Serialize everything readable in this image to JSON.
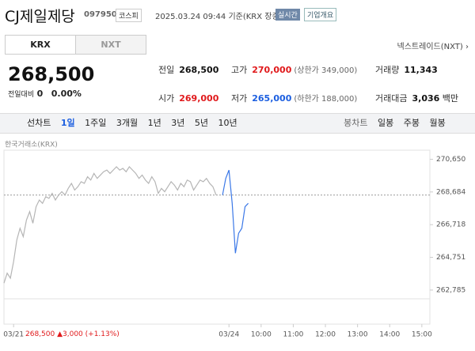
{
  "header": {
    "name": "CJ제일제당",
    "code": "097950",
    "market": "코스피",
    "datetime": "2025.03.24 09:44",
    "basis": "기준(KRX 장중)",
    "realtime": "실시간",
    "company_info": "기업개요"
  },
  "exchange_tabs": [
    "KRX",
    "NXT"
  ],
  "nxt_link": "넥스트레이드(NXT)",
  "quote": {
    "price": "268,500",
    "change_label": "전일대비",
    "change": "0",
    "change_rate": "0.00%"
  },
  "stats": [
    {
      "label": "전일",
      "value": "268,500"
    },
    {
      "label": "고가",
      "value": "270,000",
      "note": "(상한가 349,000)"
    },
    {
      "label": "거래량",
      "value": "11,343"
    },
    {
      "label": "시가",
      "value": "269,000"
    },
    {
      "label": "저가",
      "value": "265,000",
      "note": "(하한가 188,000)"
    },
    {
      "label": "거래대금",
      "value": "3,036",
      "unit": "백만"
    }
  ],
  "line_tabs": {
    "label": "선차트",
    "items": [
      "1일",
      "1주일",
      "3개월",
      "1년",
      "3년",
      "5년",
      "10년"
    ]
  },
  "candle_tabs": {
    "label": "봉차트",
    "items": [
      "일봉",
      "주봉",
      "월봉"
    ]
  },
  "footer_quote": {
    "price": "268,500",
    "change": "▲3,000",
    "rate": "(+1.13%)"
  },
  "chart_data": {
    "type": "line",
    "subtitle": "한국거래소(KRX)",
    "series": [
      {
        "color": "#b5b5b5",
        "x": [
          0,
          1,
          2,
          3,
          4,
          5,
          6,
          7,
          8,
          9,
          10,
          11,
          12,
          13,
          14,
          15,
          16,
          17,
          18,
          19,
          20,
          21,
          22,
          23,
          24,
          25,
          26,
          27,
          28,
          29,
          30,
          31,
          32,
          33,
          34,
          35,
          36,
          37,
          38,
          39,
          40,
          41,
          42,
          43,
          44,
          45,
          46,
          47,
          48,
          49,
          50,
          51,
          52,
          53,
          54,
          55,
          56,
          57,
          58,
          59,
          60,
          61,
          62,
          63,
          64,
          65,
          66
        ],
        "values": [
          263200,
          263800,
          263500,
          264500,
          265800,
          266500,
          266000,
          267000,
          267500,
          266800,
          267800,
          268200,
          268000,
          268400,
          268300,
          268600,
          268200,
          268500,
          268700,
          268500,
          268900,
          269200,
          268800,
          269000,
          269300,
          269200,
          269600,
          269400,
          269800,
          269500,
          269700,
          269900,
          270000,
          269800,
          270000,
          270200,
          270000,
          270100,
          269900,
          270200,
          270000,
          269800,
          269500,
          269700,
          269400,
          269200,
          269600,
          269300,
          268600,
          268900,
          268700,
          269000,
          269300,
          269100,
          268800,
          269200,
          269000,
          269400,
          269300,
          268800,
          269100,
          269400,
          269300,
          269500,
          269200,
          269000,
          268500
        ]
      },
      {
        "color": "#3b78e7",
        "x": [
          68,
          69,
          70,
          71,
          72,
          73,
          74,
          75,
          76
        ],
        "values": [
          268500,
          269500,
          270000,
          268000,
          265000,
          266200,
          266500,
          267800,
          268000
        ]
      }
    ],
    "reference_line": 268500,
    "xlim": [
      0,
      132.5
    ],
    "xticks": [
      {
        "value": 3,
        "label": "03/21"
      },
      {
        "value": 70,
        "label": "03/24"
      },
      {
        "value": 80,
        "label": "10:00"
      },
      {
        "value": 90,
        "label": "11:00"
      },
      {
        "value": 100,
        "label": "12:00"
      },
      {
        "value": 110,
        "label": "13:00"
      },
      {
        "value": 120,
        "label": "14:00"
      },
      {
        "value": 130,
        "label": "15:00"
      }
    ],
    "ylim": [
      262400,
      271100
    ],
    "yticks": [
      {
        "value": 270650,
        "label": "270,650"
      },
      {
        "value": 268684,
        "label": "268,684"
      },
      {
        "value": 266718,
        "label": "266,718"
      },
      {
        "value": 264751,
        "label": "264,751"
      },
      {
        "value": 262785,
        "label": "262,785"
      }
    ]
  }
}
